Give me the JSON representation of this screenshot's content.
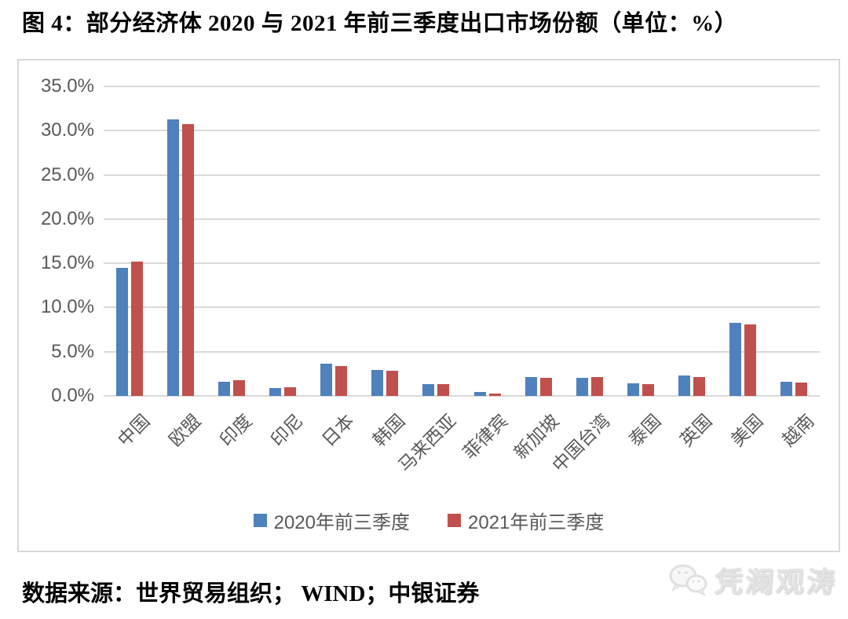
{
  "title": "图 4：部分经济体 2020 与 2021 年前三季度出口市场份额（单位：%）",
  "source": "数据来源：世界贸易组织；  WIND；中银证券",
  "watermark": "凭澜观涛",
  "colors": {
    "series_2020": "#4f81bd",
    "series_2021": "#c0504d",
    "gridline": "#d9d9d9",
    "axis_text": "#595959",
    "frame_border": "#d9d9d9"
  },
  "chart_data": {
    "type": "bar",
    "categories": [
      "中国",
      "欧盟",
      "印度",
      "印尼",
      "日本",
      "韩国",
      "马来西亚",
      "菲律宾",
      "新加坡",
      "中国台湾",
      "泰国",
      "英国",
      "美国",
      "越南"
    ],
    "series": [
      {
        "name": "2020年前三季度",
        "color": "#4f81bd",
        "values": [
          14.5,
          31.3,
          1.6,
          0.9,
          3.6,
          2.9,
          1.3,
          0.4,
          2.1,
          2.0,
          1.4,
          2.3,
          8.3,
          1.6
        ]
      },
      {
        "name": "2021年前三季度",
        "color": "#c0504d",
        "values": [
          15.2,
          30.7,
          1.8,
          1.0,
          3.4,
          2.8,
          1.3,
          0.3,
          2.0,
          2.1,
          1.3,
          2.1,
          8.1,
          1.5
        ]
      }
    ],
    "yticks": [
      {
        "value": 35,
        "label": "35.0%"
      },
      {
        "value": 30,
        "label": "30.0%"
      },
      {
        "value": 25,
        "label": "25.0%"
      },
      {
        "value": 20,
        "label": "20.0%"
      },
      {
        "value": 15,
        "label": "15.0%"
      },
      {
        "value": 10,
        "label": "10.0%"
      },
      {
        "value": 5,
        "label": "5.0%"
      },
      {
        "value": 0,
        "label": "0.0%"
      }
    ],
    "ylim": [
      0,
      35
    ],
    "grid": true,
    "legend_position": "bottom"
  }
}
